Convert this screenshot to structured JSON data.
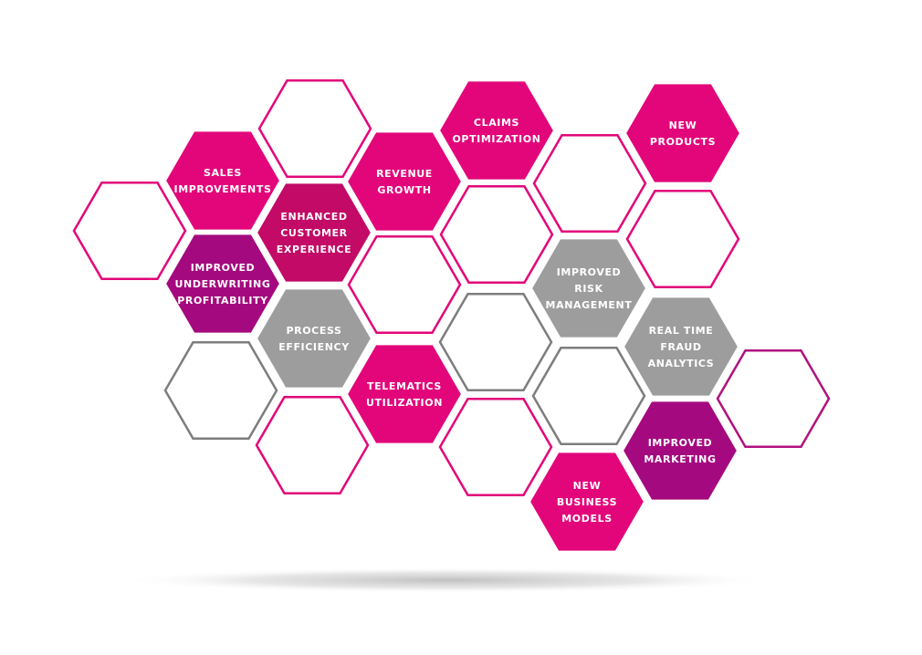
{
  "colors": {
    "magenta": "#e2067a",
    "crimson": "#c20a66",
    "purple": "#a4097f",
    "gray": "#9d9d9d",
    "outline_magenta": "#e2067a",
    "outline_purple": "#b0127f",
    "outline_gray": "#7d7d7d",
    "shadow": "#c8c8c8"
  },
  "hexagons": [
    {
      "id": "empty-far-left",
      "style": "outline",
      "color": "outline_magenta",
      "lines": []
    },
    {
      "id": "empty-top",
      "style": "outline",
      "color": "outline_magenta",
      "lines": []
    },
    {
      "id": "sales-improvements",
      "style": "fill",
      "color": "magenta",
      "lines": [
        "SALES",
        "IMPROVEMENTS"
      ]
    },
    {
      "id": "enhanced-customer-experience",
      "style": "fill",
      "color": "crimson",
      "lines": [
        "ENHANCED",
        "CUSTOMER",
        "EXPERIENCE"
      ]
    },
    {
      "id": "improved-underwriting-profitability",
      "style": "fill",
      "color": "purple",
      "lines": [
        "IMPROVED",
        "UNDERWRITING",
        "PROFITABILITY"
      ]
    },
    {
      "id": "process-efficiency",
      "style": "fill",
      "color": "gray",
      "lines": [
        "PROCESS",
        "EFFICIENCY"
      ]
    },
    {
      "id": "empty-lower-left",
      "style": "outline",
      "color": "outline_gray",
      "lines": []
    },
    {
      "id": "empty-bottom-left",
      "style": "outline",
      "color": "outline_magenta",
      "lines": []
    },
    {
      "id": "revenue-growth",
      "style": "fill",
      "color": "magenta",
      "lines": [
        "REVENUE",
        "GROWTH"
      ]
    },
    {
      "id": "empty-center",
      "style": "outline",
      "color": "outline_magenta",
      "lines": []
    },
    {
      "id": "telematics-utilization",
      "style": "fill",
      "color": "magenta",
      "lines": [
        "TELEMATICS",
        "UTILIZATION"
      ]
    },
    {
      "id": "empty-bottom-center",
      "style": "outline",
      "color": "outline_magenta",
      "lines": []
    },
    {
      "id": "claims-optimization",
      "style": "fill",
      "color": "magenta",
      "lines": [
        "CLAIMS",
        "OPTIMIZATION"
      ]
    },
    {
      "id": "empty-mid-upper",
      "style": "outline",
      "color": "outline_magenta",
      "lines": []
    },
    {
      "id": "empty-mid-lower",
      "style": "outline",
      "color": "outline_gray",
      "lines": []
    },
    {
      "id": "empty-mid-right-top",
      "style": "outline",
      "color": "outline_magenta",
      "lines": []
    },
    {
      "id": "improved-risk-management",
      "style": "fill",
      "color": "gray",
      "lines": [
        "IMPROVED",
        "RISK",
        "MANAGEMENT"
      ]
    },
    {
      "id": "empty-mid-right-bottom",
      "style": "outline",
      "color": "outline_gray",
      "lines": []
    },
    {
      "id": "new-business-models",
      "style": "fill",
      "color": "magenta",
      "lines": [
        "NEW",
        "BUSINESS",
        "MODELS"
      ]
    },
    {
      "id": "new-products",
      "style": "fill",
      "color": "magenta",
      "lines": [
        "NEW",
        "PRODUCTS"
      ]
    },
    {
      "id": "empty-right-upper",
      "style": "outline",
      "color": "outline_magenta",
      "lines": []
    },
    {
      "id": "real-time-fraud-analytics",
      "style": "fill",
      "color": "gray",
      "lines": [
        "REAL TIME",
        "FRAUD",
        "ANALYTICS"
      ]
    },
    {
      "id": "improved-marketing",
      "style": "fill",
      "color": "purple",
      "lines": [
        "IMPROVED",
        "MARKETING"
      ]
    },
    {
      "id": "empty-far-right",
      "style": "outline",
      "color": "outline_purple",
      "lines": []
    }
  ]
}
